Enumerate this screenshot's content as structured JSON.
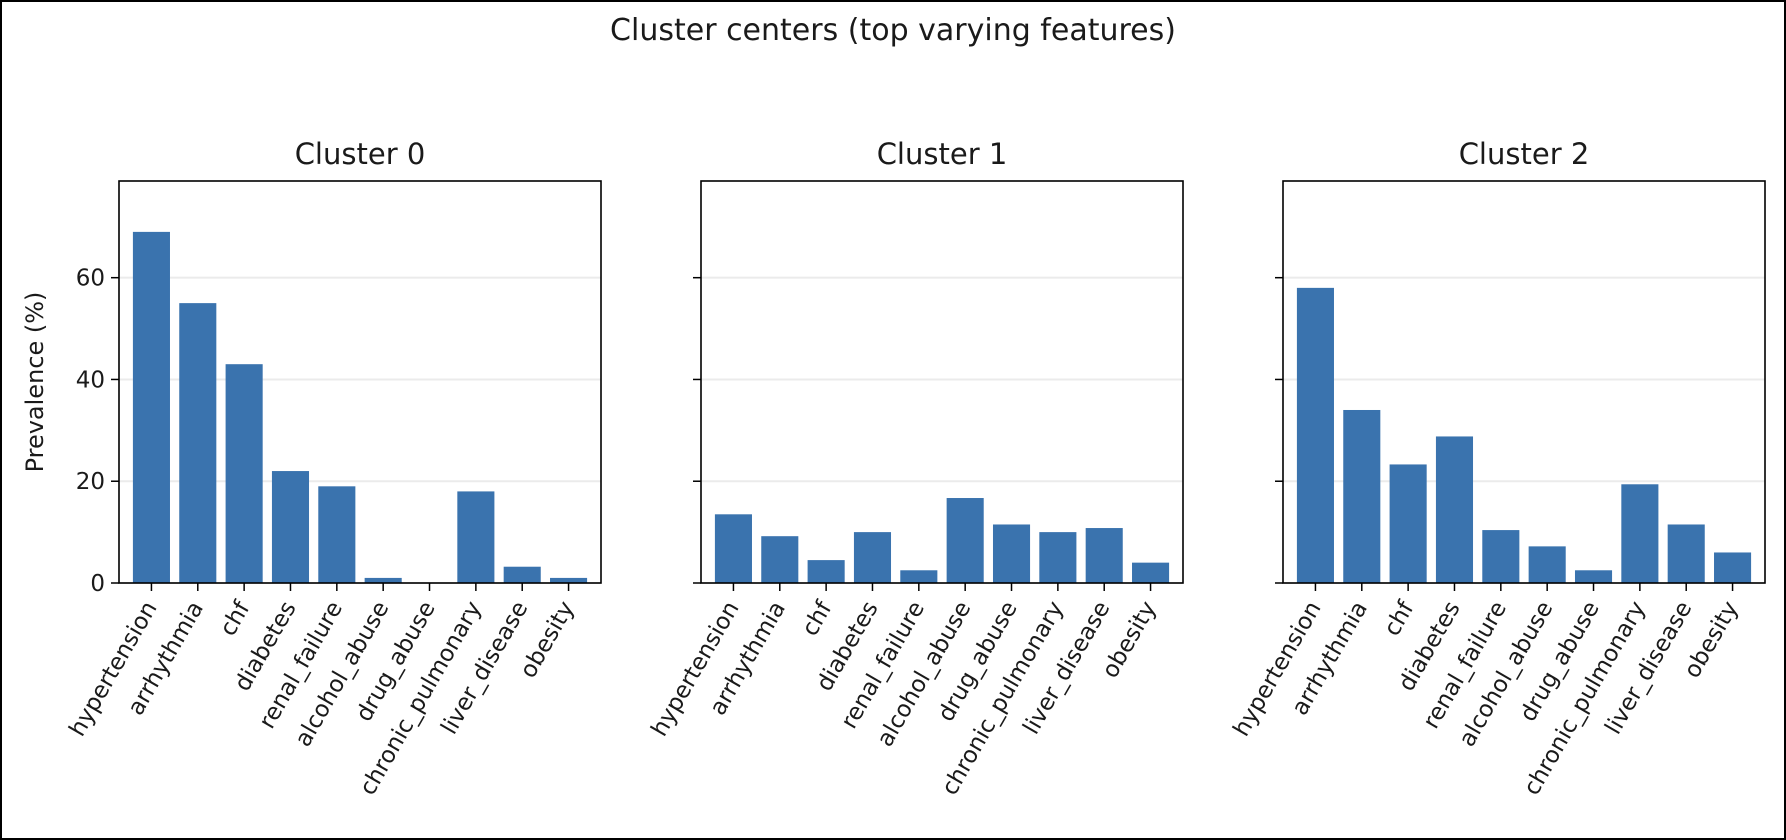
{
  "figure": {
    "suptitle": "Cluster centers (top varying features)",
    "ylabel": "Prevalence (%)"
  },
  "colors": {
    "bar": "#3a73ae",
    "background": "#ffffff",
    "frame": "#000000",
    "grid": "#ebebeb"
  },
  "chart_data": [
    {
      "type": "bar",
      "title": "Cluster 0",
      "categories": [
        "hypertension",
        "arrhythmia",
        "chf",
        "diabetes",
        "renal_failure",
        "alcohol_abuse",
        "drug_abuse",
        "chronic_pulmonary",
        "liver_disease",
        "obesity"
      ],
      "values": [
        69,
        55,
        43,
        22,
        19,
        1,
        0,
        18,
        3.2,
        1
      ],
      "ylabel": "Prevalence (%)",
      "yticks": [
        "0",
        "20",
        "40",
        "60"
      ],
      "ylim": [
        0,
        79
      ],
      "grid": "y"
    },
    {
      "type": "bar",
      "title": "Cluster 1",
      "categories": [
        "hypertension",
        "arrhythmia",
        "chf",
        "diabetes",
        "renal_failure",
        "alcohol_abuse",
        "drug_abuse",
        "chronic_pulmonary",
        "liver_disease",
        "obesity"
      ],
      "values": [
        13.5,
        9.2,
        4.5,
        10,
        2.5,
        16.7,
        11.5,
        10,
        10.8,
        4
      ],
      "ylim": [
        0,
        79
      ],
      "grid": "y"
    },
    {
      "type": "bar",
      "title": "Cluster 2",
      "categories": [
        "hypertension",
        "arrhythmia",
        "chf",
        "diabetes",
        "renal_failure",
        "alcohol_abuse",
        "drug_abuse",
        "chronic_pulmonary",
        "liver_disease",
        "obesity"
      ],
      "values": [
        58,
        34,
        23.3,
        28.8,
        10.4,
        7.2,
        2.5,
        19.4,
        11.5,
        6
      ],
      "ylim": [
        0,
        79
      ],
      "grid": "y"
    }
  ]
}
